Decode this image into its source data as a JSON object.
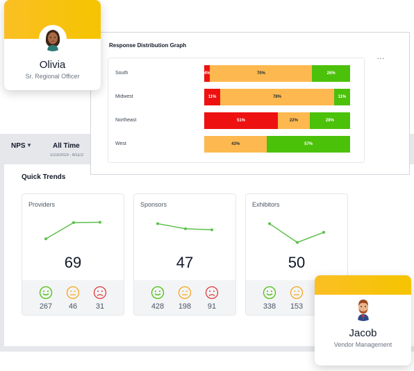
{
  "dashboard": {
    "metric_selector": "NPS",
    "time_label": "All Time",
    "time_range": "1/23/2019 - 8/11/2"
  },
  "graph": {
    "title": "Response Distribution Graph",
    "menu_label": "...",
    "rows": [
      {
        "label": "South",
        "segments": [
          {
            "text": "4%",
            "value": 4,
            "color": "#ee1111"
          },
          {
            "text": "70%",
            "value": 70,
            "color": "#fdb94f"
          },
          {
            "text": "26%",
            "value": 26,
            "color": "#4cc10a"
          }
        ]
      },
      {
        "label": "Midwest",
        "segments": [
          {
            "text": "11%",
            "value": 11,
            "color": "#ee1111"
          },
          {
            "text": "78%",
            "value": 78,
            "color": "#fdb94f"
          },
          {
            "text": "11%",
            "value": 11,
            "color": "#4cc10a"
          }
        ]
      },
      {
        "label": "Northeast",
        "segments": [
          {
            "text": "51%",
            "value": 51,
            "color": "#ee1111"
          },
          {
            "text": "22%",
            "value": 22,
            "color": "#fdb94f"
          },
          {
            "text": "28%",
            "value": 28,
            "color": "#4cc10a"
          }
        ]
      },
      {
        "label": "West",
        "segments": [
          {
            "text": "43%",
            "value": 43,
            "color": "#fdb94f"
          },
          {
            "text": "57%",
            "value": 57,
            "color": "#4cc10a"
          }
        ]
      }
    ]
  },
  "trends": {
    "title": "Quick Trends",
    "cards": [
      {
        "name": "Providers",
        "score": "69",
        "spark": [
          30,
          75,
          76
        ],
        "counts": {
          "positive": "267",
          "neutral": "46",
          "negative": "31"
        }
      },
      {
        "name": "Sponsors",
        "score": "47",
        "spark": [
          72,
          58,
          55
        ],
        "counts": {
          "positive": "428",
          "neutral": "198",
          "negative": "91"
        }
      },
      {
        "name": "Exhibitors",
        "score": "50",
        "spark": [
          72,
          20,
          48
        ],
        "counts": {
          "positive": "338",
          "neutral": "153",
          "negative": ""
        }
      }
    ]
  },
  "people": {
    "olivia": {
      "name": "Olivia",
      "role": "Sr. Regional Officer"
    },
    "jacob": {
      "name": "Jacob",
      "role": "Vendor Management"
    }
  },
  "colors": {
    "positive": "#4cc10a",
    "neutral": "#f5a623",
    "negative": "#e23b3b",
    "spark_line": "#5cbf4a",
    "banner": "#fbbf24"
  }
}
